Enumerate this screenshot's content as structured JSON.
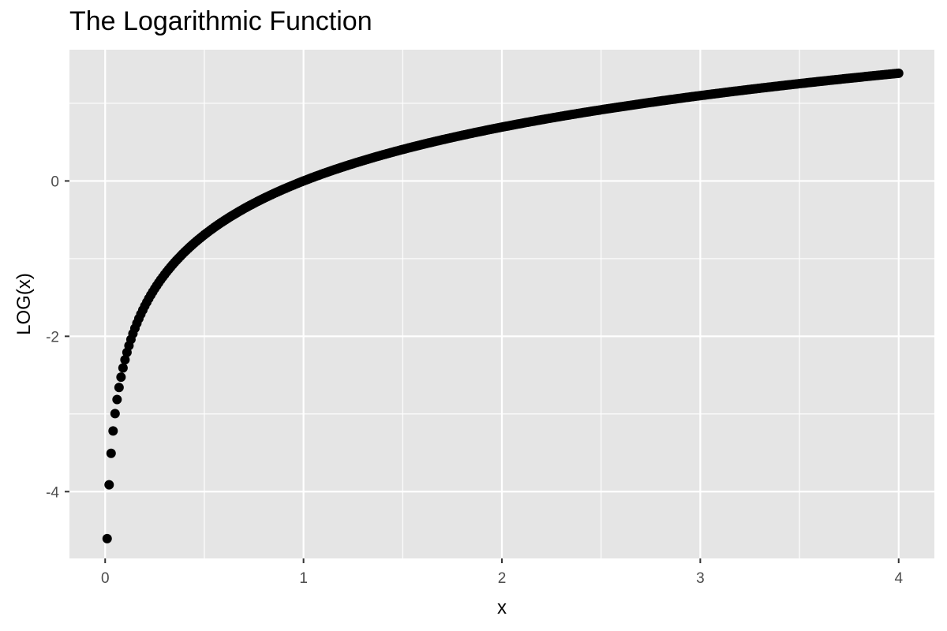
{
  "chart_data": {
    "type": "scatter",
    "title": "The Logarithmic Function",
    "xlabel": "x",
    "ylabel": "LOG(x)",
    "xlim": [
      -0.18,
      4.18
    ],
    "ylim": [
      -4.86,
      1.69
    ],
    "x_ticks": [
      0,
      1,
      2,
      3,
      4
    ],
    "x_tick_labels": [
      "0",
      "1",
      "2",
      "3",
      "4"
    ],
    "y_ticks": [
      -4,
      -2,
      0
    ],
    "y_tick_labels": [
      "-4",
      "-2",
      "0"
    ],
    "grid": true,
    "legend": "none",
    "series": [
      {
        "function": "log(x)",
        "x_from": 0.01,
        "x_to": 4,
        "x_step": 0.01,
        "color": "#000000",
        "sample_points": [
          {
            "x": 0.01,
            "y": -4.61
          },
          {
            "x": 0.05,
            "y": -3.0
          },
          {
            "x": 0.1,
            "y": -2.3
          },
          {
            "x": 0.25,
            "y": -1.39
          },
          {
            "x": 0.5,
            "y": -0.69
          },
          {
            "x": 1,
            "y": 0
          },
          {
            "x": 2,
            "y": 0.69
          },
          {
            "x": 3,
            "y": 1.1
          },
          {
            "x": 4,
            "y": 1.39
          }
        ]
      }
    ]
  },
  "colors": {
    "panel_background": "#e5e5e5",
    "grid_line": "#ffffff",
    "tick_text": "#4d4d4d",
    "axis_tick": "#333333"
  }
}
